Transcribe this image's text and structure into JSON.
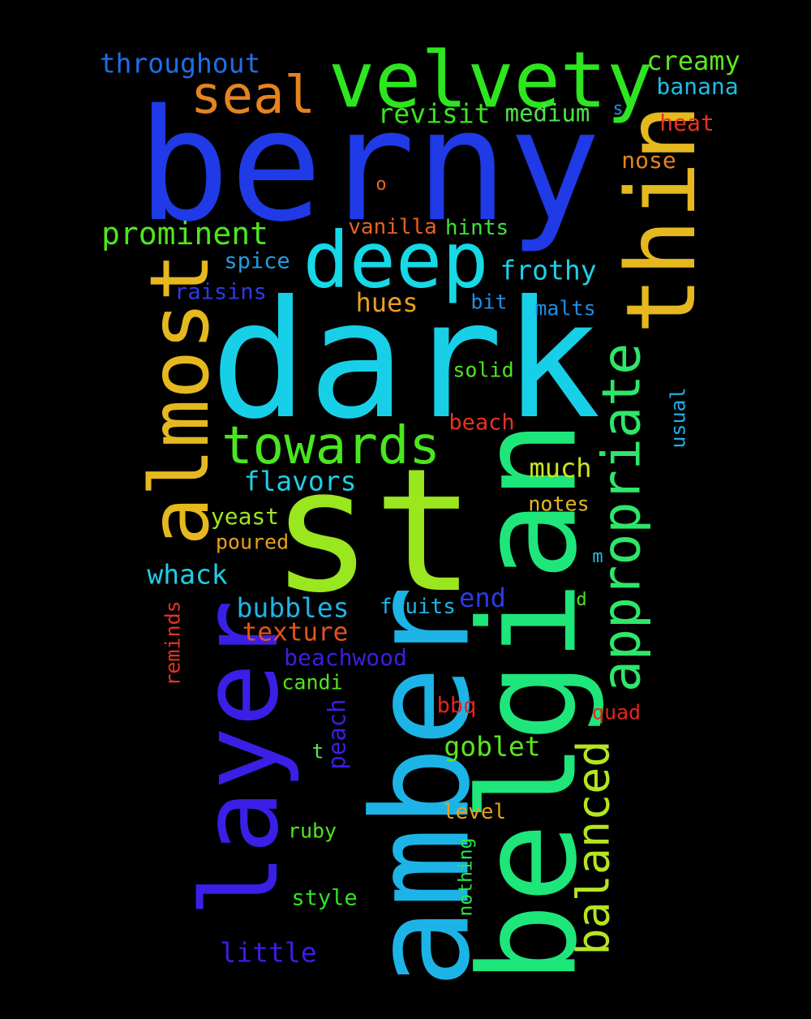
{
  "background_color": "#000000",
  "words": [
    {
      "text": "berny",
      "color": "#1f3ae6"
    },
    {
      "text": "dark",
      "color": "#17d0e8"
    },
    {
      "text": "st",
      "color": "#9ae61f"
    },
    {
      "text": "amber",
      "color": "#1cb4e6"
    },
    {
      "text": "belgian",
      "color": "#1ee67a"
    },
    {
      "text": "layer",
      "color": "#3a1fe6"
    },
    {
      "text": "thin",
      "color": "#e6b81f"
    },
    {
      "text": "velvety",
      "color": "#2ee61f"
    },
    {
      "text": "almost",
      "color": "#e6b81f"
    },
    {
      "text": "deep",
      "color": "#17d8e6"
    },
    {
      "text": "appropriate",
      "color": "#2ee66a"
    },
    {
      "text": "towards",
      "color": "#4ae61f"
    },
    {
      "text": "seal",
      "color": "#e6831f"
    },
    {
      "text": "balanced",
      "color": "#b4e61f"
    },
    {
      "text": "prominent",
      "color": "#4ee61f"
    },
    {
      "text": "throughout",
      "color": "#1f6ee6"
    },
    {
      "text": "creamy",
      "color": "#5ee61f"
    },
    {
      "text": "banana",
      "color": "#1fbde6"
    },
    {
      "text": "revisit",
      "color": "#3ae61f"
    },
    {
      "text": "medium",
      "color": "#4ee64a"
    },
    {
      "text": "s",
      "color": "#1f8ee6"
    },
    {
      "text": "heat",
      "color": "#e6331f"
    },
    {
      "text": "nose",
      "color": "#e6831f"
    },
    {
      "text": "o",
      "color": "#e6631f"
    },
    {
      "text": "vanilla",
      "color": "#e6631f"
    },
    {
      "text": "hints",
      "color": "#3ae63a"
    },
    {
      "text": "spice",
      "color": "#1f9ee6"
    },
    {
      "text": "frothy",
      "color": "#1fcfe6"
    },
    {
      "text": "raisins",
      "color": "#2e3ae6"
    },
    {
      "text": "hues",
      "color": "#e6a01f"
    },
    {
      "text": "bit",
      "color": "#1f8ee6"
    },
    {
      "text": "malts",
      "color": "#1f8ee6"
    },
    {
      "text": "solid",
      "color": "#4ee61f"
    },
    {
      "text": "usual",
      "color": "#1faee6"
    },
    {
      "text": "beach",
      "color": "#e6331f"
    },
    {
      "text": "much",
      "color": "#cee61f"
    },
    {
      "text": "flavors",
      "color": "#1fcfe6"
    },
    {
      "text": "notes",
      "color": "#e6b81f"
    },
    {
      "text": "yeast",
      "color": "#a0e61f"
    },
    {
      "text": "poured",
      "color": "#e6a01f"
    },
    {
      "text": "m",
      "color": "#1fbde6"
    },
    {
      "text": "whack",
      "color": "#1fcfe6"
    },
    {
      "text": "end",
      "color": "#2e3ae6"
    },
    {
      "text": "d",
      "color": "#4ee61f"
    },
    {
      "text": "bubbles",
      "color": "#1fb4e6"
    },
    {
      "text": "fruits",
      "color": "#1fb4e6"
    },
    {
      "text": "texture",
      "color": "#e6531f"
    },
    {
      "text": "reminds",
      "color": "#e6331f"
    },
    {
      "text": "beachwood",
      "color": "#3a1fe6"
    },
    {
      "text": "candi",
      "color": "#4ee61f"
    },
    {
      "text": "bbq",
      "color": "#e6231f"
    },
    {
      "text": "quad",
      "color": "#e6231f"
    },
    {
      "text": "peach",
      "color": "#3a1fe6"
    },
    {
      "text": "t",
      "color": "#4ee64a"
    },
    {
      "text": "goblet",
      "color": "#5ee61f"
    },
    {
      "text": "level",
      "color": "#e6a01f"
    },
    {
      "text": "ruby",
      "color": "#4ee61f"
    },
    {
      "text": "nothing",
      "color": "#2ee64a"
    },
    {
      "text": "style",
      "color": "#2ee61f"
    },
    {
      "text": "little",
      "color": "#3a1fe6"
    }
  ]
}
